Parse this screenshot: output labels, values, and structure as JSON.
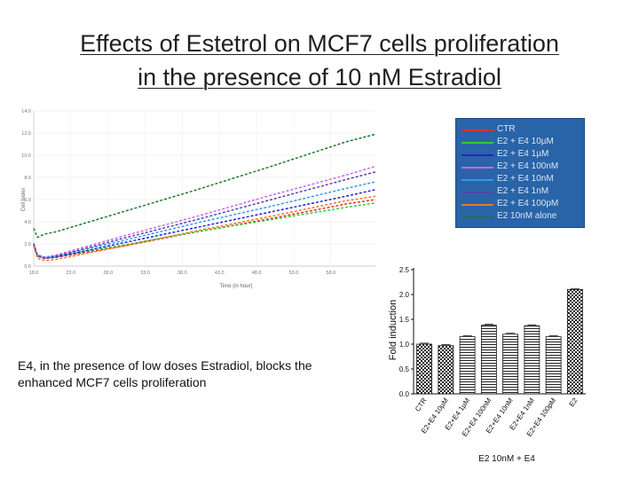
{
  "slide": {
    "title_line1": "Effects of Estetrol on MCF7 cells proliferation",
    "title_line2": "in the presence of  10 nM  Estradiol",
    "caption": "E4, in the presence of low doses Estradiol, blocks the enhanced MCF7 cells proliferation"
  },
  "chart_data": [
    {
      "type": "line",
      "title": "",
      "xlabel": "Time (in hour)",
      "ylabel": "Cell Index",
      "x_ticks": [
        "18.0",
        "23.0",
        "28.0",
        "33.0",
        "38.0",
        "43.0",
        "48.0",
        "53.0",
        "58.0"
      ],
      "y_ticks": [
        "0.0",
        "2.0",
        "4.0",
        "6.0",
        "8.0",
        "10.0",
        "12.0",
        "14.0"
      ],
      "xlim": [
        18,
        64
      ],
      "ylim": [
        0,
        14
      ],
      "legend_position": "right",
      "series": [
        {
          "name": "CTR",
          "color": "#e03030",
          "dashed": true,
          "x": [
            18,
            18.5,
            19.5,
            21,
            30,
            40,
            50,
            60,
            64
          ],
          "y": [
            1.9,
            0.9,
            0.7,
            0.8,
            1.8,
            3.1,
            4.3,
            5.6,
            6.0
          ]
        },
        {
          "name": "E2 + E4 10µM",
          "color": "#33cc33",
          "dashed": true,
          "x": [
            18,
            18.5,
            19.5,
            21,
            30,
            40,
            50,
            60,
            64
          ],
          "y": [
            2.0,
            1.0,
            0.8,
            0.9,
            1.9,
            3.1,
            4.2,
            5.3,
            5.7
          ]
        },
        {
          "name": "E2 + E4 1µM",
          "color": "#2222cc",
          "dashed": true,
          "x": [
            18,
            18.5,
            19.5,
            21,
            30,
            40,
            50,
            60,
            64
          ],
          "y": [
            2.0,
            0.9,
            0.7,
            0.8,
            2.1,
            3.5,
            4.9,
            6.3,
            6.9
          ]
        },
        {
          "name": "E2 + E4 100nM",
          "color": "#cc66ee",
          "dashed": true,
          "x": [
            18,
            18.5,
            19.5,
            21,
            30,
            40,
            50,
            60,
            64
          ],
          "y": [
            2.1,
            1.0,
            0.8,
            1.0,
            2.7,
            4.5,
            6.4,
            8.2,
            9.0
          ]
        },
        {
          "name": "E2 + E4 10nM",
          "color": "#3399ee",
          "dashed": true,
          "x": [
            18,
            18.5,
            19.5,
            21,
            30,
            40,
            50,
            60,
            64
          ],
          "y": [
            2.0,
            1.0,
            0.8,
            0.9,
            2.3,
            3.9,
            5.4,
            7.0,
            7.6
          ]
        },
        {
          "name": "E2 + E4 1nM",
          "color": "#5544aa",
          "dashed": true,
          "x": [
            18,
            18.5,
            19.5,
            21,
            30,
            40,
            50,
            60,
            64
          ],
          "y": [
            2.0,
            0.9,
            0.7,
            0.9,
            2.5,
            4.2,
            6.0,
            7.8,
            8.5
          ]
        },
        {
          "name": "E2 + E4 100pM",
          "color": "#ee7722",
          "dashed": true,
          "x": [
            18,
            18.5,
            19.5,
            21,
            30,
            40,
            50,
            60,
            64
          ],
          "y": [
            1.8,
            0.7,
            0.5,
            0.6,
            1.8,
            3.2,
            4.5,
            5.9,
            6.3
          ]
        },
        {
          "name": "E2 10nM alone",
          "color": "#1a7a2a",
          "dashed": true,
          "x": [
            18,
            18.5,
            19.5,
            21,
            30,
            40,
            50,
            60,
            64
          ],
          "y": [
            3.4,
            2.6,
            2.9,
            3.1,
            4.9,
            6.9,
            9.0,
            11.2,
            11.9
          ]
        }
      ]
    },
    {
      "type": "bar",
      "title": "",
      "xlabel": "E2 10nM + E4",
      "ylabel": "Fold induction",
      "ylim": [
        0,
        2.5
      ],
      "y_ticks": [
        "0.0",
        "0.5",
        "1.0",
        "1.5",
        "2.0",
        "2.5"
      ],
      "categories": [
        "CTR",
        "E2+E4 10µM",
        "E2+E4 1µM",
        "E2+E4 100nM",
        "E2+E4 10nM",
        "E2+E4 1nM",
        "E2+E4 100pM",
        "E2"
      ],
      "values": [
        1.0,
        0.97,
        1.15,
        1.38,
        1.2,
        1.37,
        1.15,
        2.1
      ],
      "errors": [
        0.02,
        0.02,
        0.02,
        0.02,
        0.02,
        0.02,
        0.02,
        0.02
      ],
      "patterns": [
        "checker",
        "checker",
        "hstripe",
        "hstripe",
        "hstripe",
        "hstripe",
        "hstripe",
        "checker"
      ]
    }
  ]
}
